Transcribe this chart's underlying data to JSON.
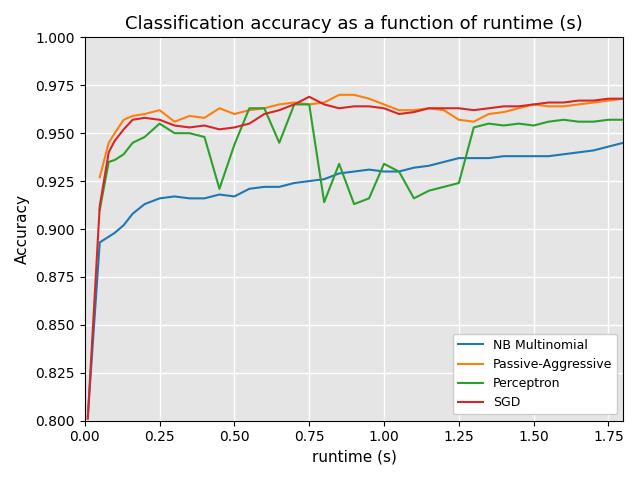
{
  "title": "Classification accuracy as a function of runtime (s)",
  "xlabel": "runtime (s)",
  "ylabel": "Accuracy",
  "xlim": [
    0,
    1.8
  ],
  "ylim": [
    0.8,
    1.0
  ],
  "xticks": [
    0.0,
    0.25,
    0.5,
    0.75,
    1.0,
    1.25,
    1.5,
    1.75
  ],
  "yticks": [
    0.8,
    0.825,
    0.85,
    0.875,
    0.9,
    0.925,
    0.95,
    0.975,
    1.0
  ],
  "series": {
    "NB Multinomial": {
      "color": "#1f77b4",
      "x": [
        0.01,
        0.05,
        0.08,
        0.1,
        0.13,
        0.16,
        0.2,
        0.25,
        0.3,
        0.35,
        0.4,
        0.45,
        0.5,
        0.55,
        0.6,
        0.65,
        0.7,
        0.75,
        0.8,
        0.85,
        0.9,
        0.95,
        1.0,
        1.05,
        1.1,
        1.15,
        1.2,
        1.25,
        1.3,
        1.35,
        1.4,
        1.45,
        1.5,
        1.55,
        1.6,
        1.65,
        1.7,
        1.75,
        1.8
      ],
      "y": [
        0.802,
        0.893,
        0.896,
        0.898,
        0.902,
        0.908,
        0.913,
        0.916,
        0.917,
        0.916,
        0.916,
        0.918,
        0.917,
        0.921,
        0.922,
        0.922,
        0.924,
        0.925,
        0.926,
        0.929,
        0.93,
        0.931,
        0.93,
        0.93,
        0.932,
        0.933,
        0.935,
        0.937,
        0.937,
        0.937,
        0.938,
        0.938,
        0.938,
        0.938,
        0.939,
        0.94,
        0.941,
        0.943,
        0.945
      ]
    },
    "Passive-Aggressive": {
      "color": "#ff7f0e",
      "x": [
        0.05,
        0.08,
        0.1,
        0.13,
        0.16,
        0.2,
        0.25,
        0.3,
        0.35,
        0.4,
        0.45,
        0.5,
        0.55,
        0.6,
        0.65,
        0.7,
        0.75,
        0.8,
        0.85,
        0.9,
        0.95,
        1.0,
        1.05,
        1.1,
        1.15,
        1.2,
        1.25,
        1.3,
        1.35,
        1.4,
        1.45,
        1.5,
        1.55,
        1.6,
        1.65,
        1.7,
        1.75,
        1.8
      ],
      "y": [
        0.927,
        0.945,
        0.95,
        0.957,
        0.959,
        0.96,
        0.962,
        0.956,
        0.959,
        0.958,
        0.963,
        0.96,
        0.962,
        0.963,
        0.965,
        0.966,
        0.965,
        0.966,
        0.97,
        0.97,
        0.968,
        0.965,
        0.962,
        0.962,
        0.963,
        0.962,
        0.957,
        0.956,
        0.96,
        0.961,
        0.963,
        0.965,
        0.964,
        0.964,
        0.965,
        0.966,
        0.967,
        0.968
      ]
    },
    "Perceptron": {
      "color": "#2ca02c",
      "x": [
        0.05,
        0.08,
        0.1,
        0.13,
        0.16,
        0.2,
        0.25,
        0.3,
        0.35,
        0.4,
        0.45,
        0.5,
        0.55,
        0.6,
        0.65,
        0.7,
        0.75,
        0.8,
        0.85,
        0.9,
        0.95,
        1.0,
        1.05,
        1.1,
        1.15,
        1.2,
        1.25,
        1.3,
        1.35,
        1.4,
        1.45,
        1.5,
        1.55,
        1.6,
        1.65,
        1.7,
        1.75,
        1.8
      ],
      "y": [
        0.91,
        0.935,
        0.936,
        0.939,
        0.945,
        0.948,
        0.955,
        0.95,
        0.95,
        0.948,
        0.921,
        0.944,
        0.963,
        0.963,
        0.945,
        0.965,
        0.965,
        0.914,
        0.934,
        0.913,
        0.916,
        0.934,
        0.93,
        0.916,
        0.92,
        0.922,
        0.924,
        0.953,
        0.955,
        0.954,
        0.955,
        0.954,
        0.956,
        0.957,
        0.956,
        0.956,
        0.957,
        0.957
      ]
    },
    "SGD": {
      "color": "#d62728",
      "x": [
        0.01,
        0.05,
        0.08,
        0.1,
        0.13,
        0.16,
        0.2,
        0.25,
        0.3,
        0.35,
        0.4,
        0.45,
        0.5,
        0.55,
        0.6,
        0.65,
        0.7,
        0.75,
        0.8,
        0.85,
        0.9,
        0.95,
        1.0,
        1.05,
        1.1,
        1.15,
        1.2,
        1.25,
        1.3,
        1.35,
        1.4,
        1.45,
        1.5,
        1.55,
        1.6,
        1.65,
        1.7,
        1.75,
        1.8
      ],
      "y": [
        0.801,
        0.912,
        0.94,
        0.946,
        0.952,
        0.957,
        0.958,
        0.957,
        0.954,
        0.953,
        0.954,
        0.952,
        0.953,
        0.955,
        0.96,
        0.962,
        0.965,
        0.969,
        0.965,
        0.963,
        0.964,
        0.964,
        0.963,
        0.96,
        0.961,
        0.963,
        0.963,
        0.963,
        0.962,
        0.963,
        0.964,
        0.964,
        0.965,
        0.966,
        0.966,
        0.967,
        0.967,
        0.968,
        0.968
      ]
    }
  }
}
